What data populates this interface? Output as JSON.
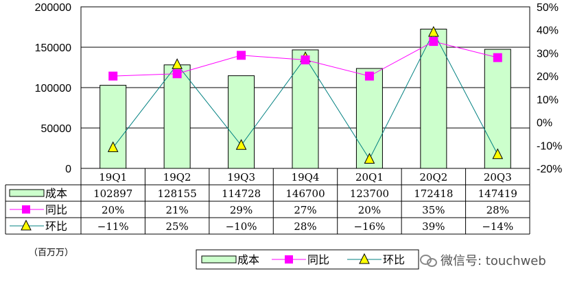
{
  "chart_data": {
    "type": "bar",
    "categories": [
      "19Q1",
      "19Q2",
      "19Q3",
      "19Q4",
      "20Q1",
      "20Q2",
      "20Q3"
    ],
    "y_left": {
      "ticks": [
        "200000",
        "150000",
        "100000",
        "50000",
        "0"
      ],
      "ylim": [
        0,
        200000
      ]
    },
    "y_right": {
      "ticks": [
        "50%",
        "40%",
        "30%",
        "20%",
        "10%",
        "0%",
        "-10%",
        "-20%"
      ],
      "ylim": [
        -20,
        50
      ]
    },
    "series": [
      {
        "name": "成本",
        "type": "bar",
        "axis": "left",
        "color": "#ccffcc",
        "values": [
          102897,
          128155,
          114728,
          146700,
          123700,
          172418,
          147419
        ],
        "labels": [
          "102897",
          "128155",
          "114728",
          "146700",
          "123700",
          "172418",
          "147419"
        ]
      },
      {
        "name": "同比",
        "type": "line",
        "axis": "right",
        "color": "#ff00ff",
        "marker": "square",
        "values": [
          20,
          21,
          29,
          27,
          20,
          35,
          28
        ],
        "labels": [
          "20%",
          "21%",
          "29%",
          "27%",
          "20%",
          "35%",
          "28%"
        ]
      },
      {
        "name": "环比",
        "type": "line",
        "axis": "right",
        "color": "#008080",
        "marker_fill": "#ffff00",
        "marker": "triangle",
        "values": [
          -11,
          25,
          -10,
          28,
          -16,
          39,
          -14
        ],
        "labels": [
          "−11%",
          "25%",
          "−10%",
          "28%",
          "−16%",
          "39%",
          "−14%"
        ]
      }
    ],
    "gridlines": true,
    "legend": "bottom"
  },
  "unit_label": "（百万万）",
  "watermark": "微信号: touchweb"
}
